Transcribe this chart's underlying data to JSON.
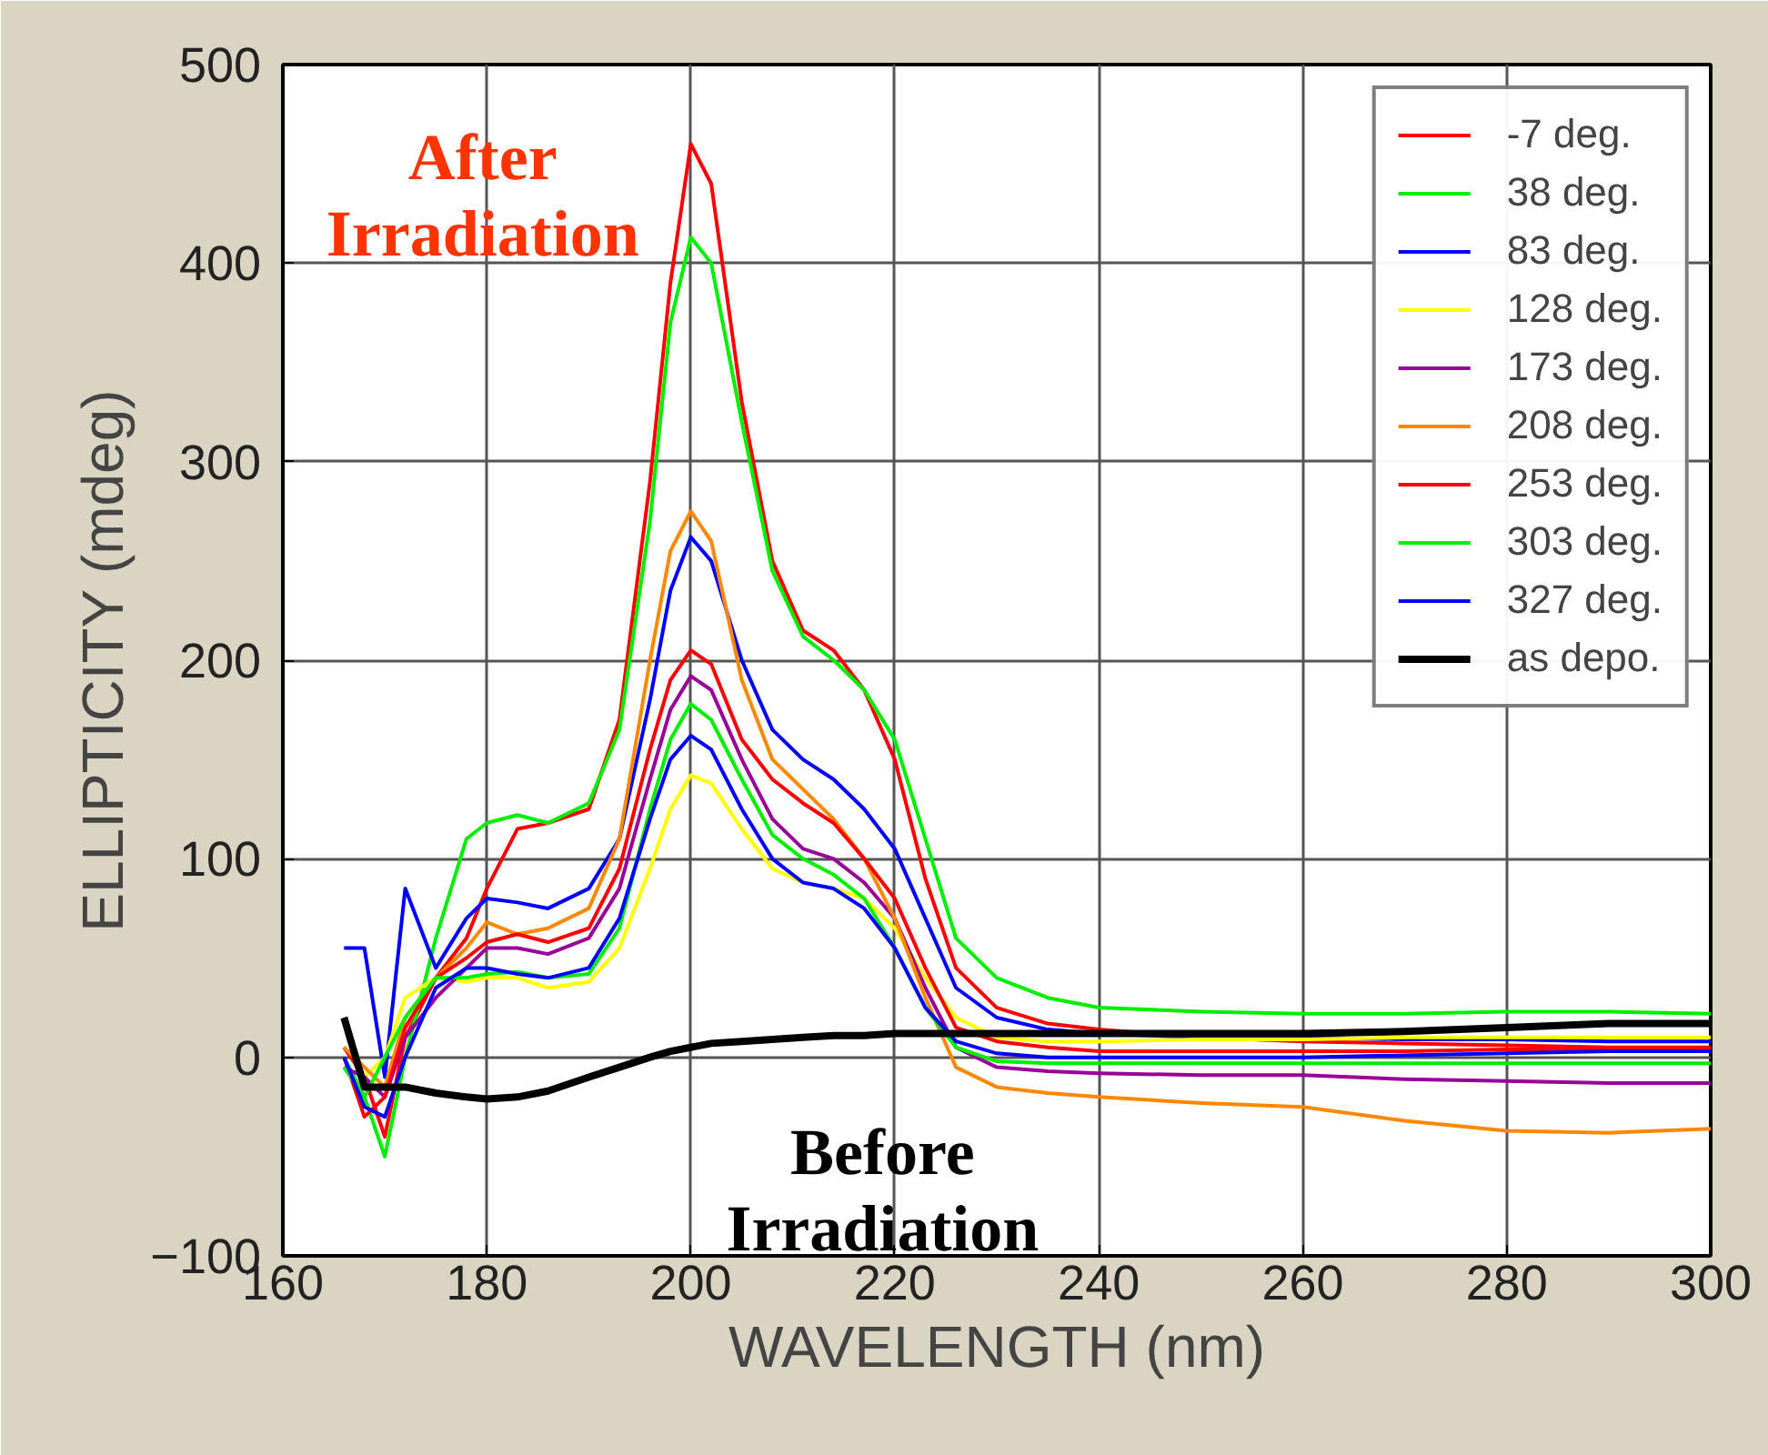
{
  "chart_data": {
    "type": "line",
    "xlabel": "WAVELENGTH (nm)",
    "ylabel": "ELLIPTICITY (mdeg)",
    "xlim": [
      160,
      300
    ],
    "xticks": [
      160,
      180,
      200,
      220,
      240,
      260,
      280,
      300
    ],
    "ylim": [
      -100,
      500
    ],
    "yticks": [
      -100,
      0,
      100,
      200,
      300,
      400,
      500
    ],
    "grid": true,
    "legend": "top right",
    "x": [
      166,
      168,
      170,
      172,
      175,
      178,
      180,
      183,
      186,
      190,
      193,
      196,
      198,
      200,
      202,
      205,
      208,
      211,
      214,
      217,
      220,
      223,
      226,
      230,
      235,
      240,
      250,
      260,
      270,
      280,
      290,
      300
    ],
    "series": [
      {
        "name": "-7 deg.",
        "color": "#ff0000",
        "values": [
          5,
          -10,
          -40,
          10,
          40,
          60,
          85,
          115,
          118,
          125,
          170,
          290,
          390,
          460,
          440,
          330,
          250,
          215,
          205,
          185,
          150,
          90,
          45,
          25,
          17,
          14,
          10,
          8,
          7,
          6,
          5,
          5
        ]
      },
      {
        "name": "38 deg.",
        "color": "#00ee00",
        "values": [
          0,
          -20,
          -50,
          0,
          60,
          110,
          118,
          122,
          118,
          128,
          165,
          270,
          370,
          413,
          400,
          320,
          245,
          212,
          200,
          185,
          160,
          110,
          60,
          40,
          30,
          25,
          23,
          22,
          22,
          23,
          23,
          22
        ]
      },
      {
        "name": "83 deg.",
        "color": "#0000ff",
        "values": [
          55,
          55,
          -10,
          85,
          45,
          70,
          80,
          78,
          75,
          85,
          110,
          180,
          235,
          262,
          250,
          200,
          165,
          150,
          140,
          125,
          105,
          70,
          35,
          20,
          14,
          12,
          10,
          10,
          9,
          9,
          8,
          8
        ]
      },
      {
        "name": "128 deg.",
        "color": "#ffff00",
        "values": [
          20,
          -10,
          0,
          30,
          40,
          38,
          40,
          40,
          35,
          38,
          55,
          95,
          125,
          142,
          138,
          115,
          95,
          88,
          85,
          80,
          65,
          40,
          20,
          10,
          8,
          8,
          9,
          9,
          10,
          10,
          10,
          10
        ]
      },
      {
        "name": "173 deg.",
        "color": "#990099",
        "values": [
          -5,
          -10,
          -20,
          10,
          30,
          45,
          55,
          55,
          52,
          60,
          85,
          140,
          175,
          192,
          185,
          150,
          120,
          105,
          100,
          88,
          70,
          35,
          5,
          -5,
          -7,
          -8,
          -9,
          -9,
          -11,
          -12,
          -13,
          -13
        ]
      },
      {
        "name": "208 deg.",
        "color": "#ff8800",
        "values": [
          5,
          -5,
          -15,
          20,
          40,
          55,
          68,
          62,
          65,
          75,
          110,
          200,
          255,
          275,
          260,
          190,
          150,
          135,
          120,
          100,
          70,
          30,
          -5,
          -15,
          -18,
          -20,
          -23,
          -25,
          -32,
          -37,
          -38,
          -36
        ]
      },
      {
        "name": "253 deg.",
        "color": "#ff0000",
        "values": [
          0,
          -30,
          -20,
          15,
          40,
          50,
          58,
          62,
          58,
          65,
          95,
          155,
          190,
          205,
          198,
          160,
          140,
          128,
          118,
          100,
          80,
          45,
          15,
          8,
          5,
          3,
          3,
          3,
          3,
          4,
          4,
          4
        ]
      },
      {
        "name": "303 deg.",
        "color": "#00ee00",
        "values": [
          -5,
          -20,
          0,
          20,
          40,
          40,
          42,
          43,
          40,
          42,
          65,
          125,
          160,
          178,
          170,
          140,
          112,
          100,
          92,
          80,
          55,
          25,
          5,
          -2,
          -3,
          -3,
          -3,
          -3,
          -3,
          -3,
          -3,
          -3
        ]
      },
      {
        "name": "327 deg.",
        "color": "#0000ff",
        "values": [
          0,
          -25,
          -30,
          0,
          35,
          45,
          45,
          42,
          40,
          45,
          70,
          120,
          150,
          162,
          155,
          125,
          100,
          88,
          85,
          75,
          55,
          25,
          8,
          2,
          0,
          0,
          0,
          0,
          1,
          2,
          3,
          3
        ]
      },
      {
        "name": "as depo.",
        "color": "#000000",
        "values": [
          20,
          -15,
          -15,
          -15,
          -18,
          -20,
          -21,
          -20,
          -17,
          -10,
          -5,
          0,
          3,
          5,
          7,
          8,
          9,
          10,
          11,
          11,
          12,
          12,
          12,
          12,
          12,
          12,
          12,
          12,
          13,
          15,
          17,
          17
        ]
      }
    ],
    "annotations": [
      "After Irradiation",
      "Before Irradiation"
    ]
  }
}
